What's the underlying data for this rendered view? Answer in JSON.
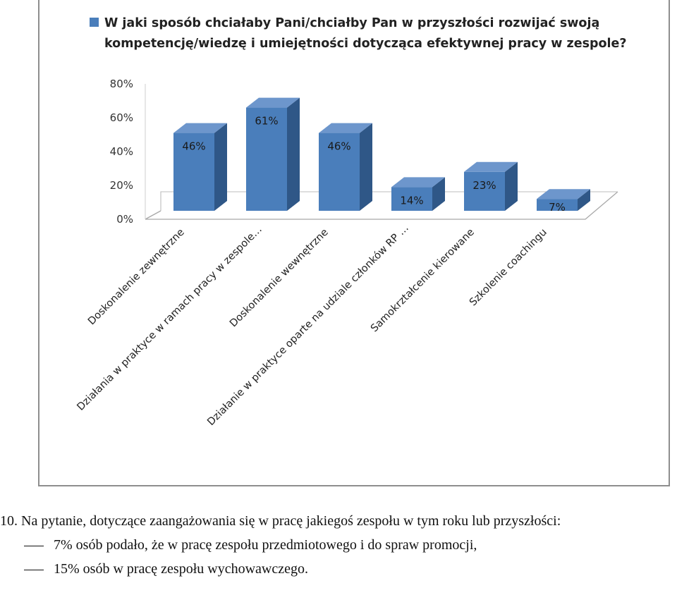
{
  "chart_data": {
    "type": "bar",
    "title": "W jaki sposób chciałaby Pani/chciałby Pan w przyszłości rozwijać swoją kompetencję/wiedzę i umiejętności dotycząca efektywnej pracy w zespole?",
    "legend": {
      "placement": "top-left",
      "lines": [
        "W jaki sposób chciałaby Pani/chciałby Pan w przyszłości rozwijać swoją",
        "kompetencję/wiedzę i umiejętności dotycząca efektywnej pracy w zespole?"
      ]
    },
    "categories": [
      "Doskonalenie zewnętrzne",
      "Działania w praktyce w ramach pracy w zespole…",
      "Doskonalenie wewnętrzne",
      "Działanie w praktyce oparte na udziale członków RP …",
      "Samokrztałcenie kierowane",
      "Szkolenie coachingu"
    ],
    "values": [
      46,
      61,
      46,
      14,
      23,
      7
    ],
    "data_labels": [
      "46%",
      "61%",
      "46%",
      "14%",
      "23%",
      "7%"
    ],
    "y_ticks": [
      "0%",
      "20%",
      "40%",
      "60%",
      "80%"
    ],
    "ylim": [
      0,
      80
    ],
    "grid": false,
    "colors": {
      "bar_front": "#4a7ebb",
      "bar_top": "#6d96cc",
      "bar_side": "#2f5787"
    }
  },
  "text": {
    "line1": "10.  Na pytanie, dotyczące zaangażowania się w pracę  jakiegoś zespołu w tym roku lub przyszłości:",
    "line2": "7%  osób podało, że w pracę zespołu przedmiotowego i do spraw promocji,",
    "line3": "15%  osób w pracę zespołu wychowawczego."
  }
}
